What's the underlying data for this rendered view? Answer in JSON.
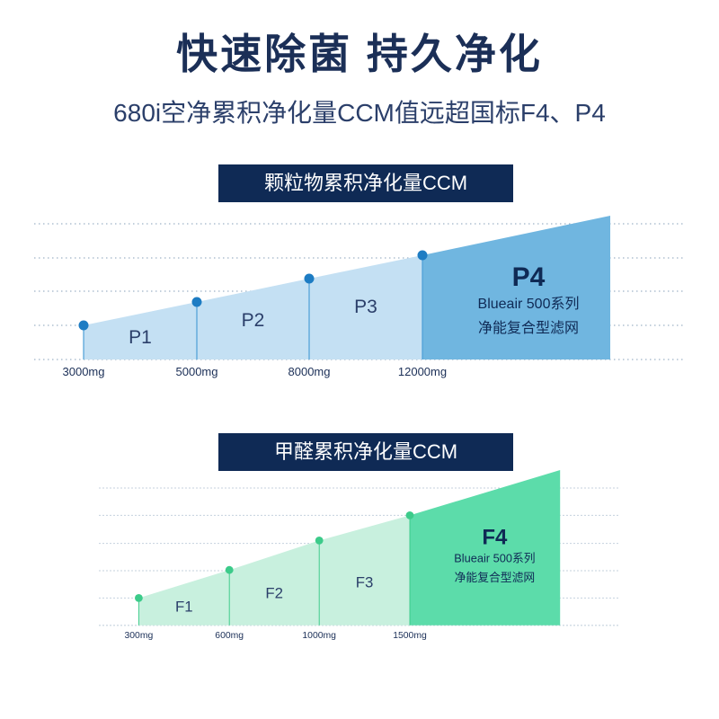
{
  "headline": "快速除菌 持久净化",
  "subheadline": "680i空净累积净化量CCM值远超国标F4、P4",
  "chart_data": [
    {
      "type": "area",
      "title": "颗粒物累积净化量CCM",
      "x": [
        "3000mg",
        "5000mg",
        "8000mg",
        "12000mg"
      ],
      "grades": [
        "P1",
        "P2",
        "P3",
        "P4"
      ],
      "highlight": {
        "grade": "P4",
        "line1": "Blueair 500系列",
        "line2": "净能复合型滤网"
      },
      "grid": true,
      "colors": {
        "area": "#c4e0f3",
        "band": "#b6d9f0",
        "highlight": "#70b6e0",
        "highlight_text": "#0f2a55",
        "point": "#1d7cc3",
        "stem": "#4e9fd6"
      }
    },
    {
      "type": "area",
      "title": "甲醛累积净化量CCM",
      "x": [
        "300mg",
        "600mg",
        "1000mg",
        "1500mg"
      ],
      "grades": [
        "F1",
        "F2",
        "F3",
        "F4"
      ],
      "highlight": {
        "grade": "F4",
        "line1": "Blueair 500系列",
        "line2": "净能复合型滤网"
      },
      "grid": true,
      "colors": {
        "area": "#c8f0de",
        "band": "#b6eed6",
        "highlight": "#5cdcaa",
        "highlight_text": "#0f2a55",
        "point": "#3ccb8a",
        "stem": "#3ccb8a"
      }
    }
  ]
}
